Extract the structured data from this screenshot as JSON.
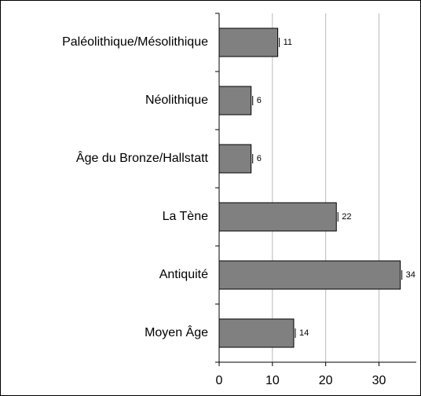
{
  "chart_data": {
    "type": "bar",
    "orientation": "horizontal",
    "categories": [
      "Paléolithique/Mésolithique",
      "Néolithique",
      "Âge du Bronze/Hallstatt",
      "La Tène",
      "Antiquité",
      "Moyen Âge"
    ],
    "values": [
      11,
      6,
      6,
      22,
      34,
      14
    ],
    "color": "#808080",
    "xlim": [
      0,
      37
    ],
    "xticks": [
      0,
      10,
      20,
      30
    ],
    "grid": true
  }
}
